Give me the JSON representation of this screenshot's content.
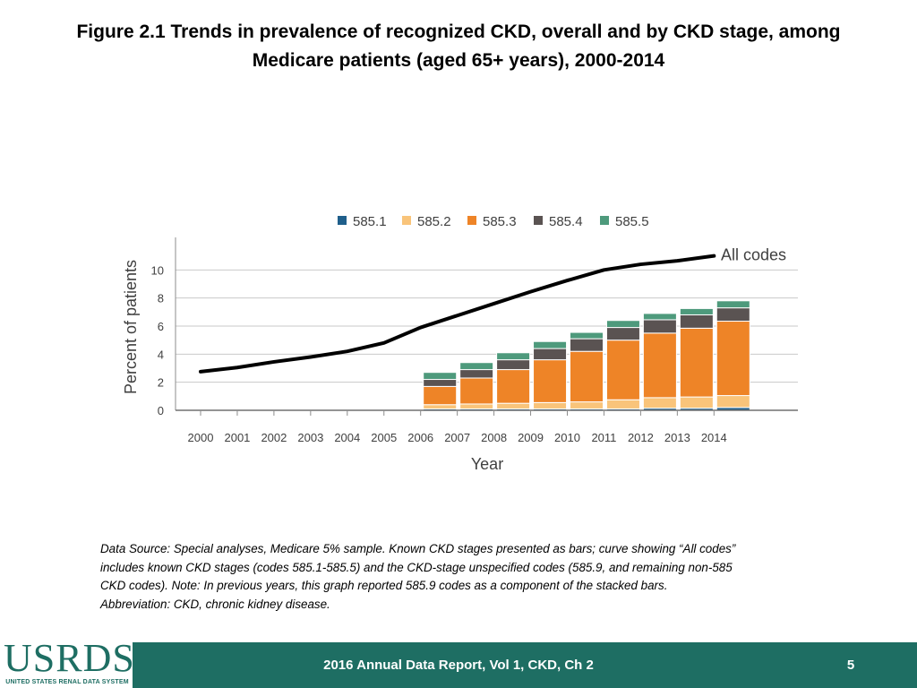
{
  "title": {
    "line1": "Figure 2.1  Trends in prevalence of recognized CKD, overall and by CKD stage, among",
    "line2": "Medicare patients (aged 65+ years), 2000-2014"
  },
  "chart_data": {
    "type": "bar",
    "stacked": true,
    "xlabel": "Year",
    "ylabel": "Percent of patients",
    "ylim": [
      0,
      12
    ],
    "yticks": [
      0,
      2,
      4,
      6,
      8,
      10
    ],
    "categories": [
      "2000",
      "2001",
      "2002",
      "2003",
      "2004",
      "2005",
      "2006",
      "2007",
      "2008",
      "2009",
      "2010",
      "2011",
      "2012",
      "2013",
      "2014"
    ],
    "series": [
      {
        "name": "585.1",
        "color": "#1f5f8b",
        "values": [
          null,
          null,
          null,
          null,
          null,
          null,
          0.1,
          0.1,
          0.1,
          0.1,
          0.1,
          0.1,
          0.15,
          0.15,
          0.2
        ]
      },
      {
        "name": "585.2",
        "color": "#f9c47a",
        "values": [
          null,
          null,
          null,
          null,
          null,
          null,
          0.3,
          0.35,
          0.4,
          0.45,
          0.5,
          0.65,
          0.75,
          0.8,
          0.85
        ]
      },
      {
        "name": "585.3",
        "color": "#ee8427",
        "values": [
          null,
          null,
          null,
          null,
          null,
          null,
          1.3,
          1.85,
          2.4,
          3.05,
          3.6,
          4.25,
          4.6,
          4.9,
          5.3
        ]
      },
      {
        "name": "585.4",
        "color": "#5a5352",
        "values": [
          null,
          null,
          null,
          null,
          null,
          null,
          0.5,
          0.6,
          0.7,
          0.8,
          0.9,
          0.9,
          0.95,
          0.95,
          0.95
        ]
      },
      {
        "name": "585.5",
        "color": "#4e9a7c",
        "values": [
          null,
          null,
          null,
          null,
          null,
          null,
          0.5,
          0.5,
          0.5,
          0.5,
          0.45,
          0.5,
          0.45,
          0.45,
          0.5
        ]
      }
    ],
    "line": {
      "name": "All codes",
      "label": "All codes",
      "color": "#000000",
      "values": [
        2.75,
        3.05,
        3.45,
        3.8,
        4.2,
        4.8,
        5.9,
        6.75,
        7.6,
        8.45,
        9.25,
        10.0,
        10.4,
        10.65,
        11.0
      ]
    },
    "legend_position": "top"
  },
  "note": {
    "line1": "Data Source: Special analyses, Medicare 5% sample. Known CKD stages presented as bars; curve showing “All codes”",
    "line2": "includes known CKD stages (codes 585.1-585.5) and the CKD-stage unspecified codes (585.9, and remaining non-585",
    "line3": "CKD codes). Note: In previous years, this graph reported 585.9 codes as a component of the stacked bars.",
    "line4": "Abbreviation: CKD, chronic kidney disease."
  },
  "footer": {
    "logo_text": "USRDS",
    "logo_subtext": "UNITED STATES RENAL DATA SYSTEM",
    "report": "2016 Annual Data Report, Vol 1, CKD, Ch 2",
    "page": "5",
    "color": "#1e6e63"
  }
}
